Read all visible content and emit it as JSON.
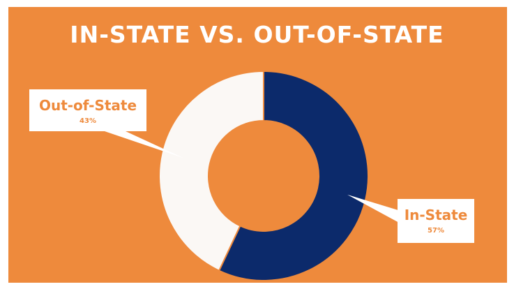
{
  "chart_data": {
    "type": "pie",
    "title": "IN-STATE VS. OUT-OF-STATE",
    "categories": [
      "In-State",
      "Out-of-State"
    ],
    "values": [
      57,
      43
    ],
    "value_labels": [
      "57%",
      "43%"
    ],
    "colors": [
      "#0c2a6b",
      "#fbf8f5"
    ],
    "donut": true,
    "legend": "callouts"
  },
  "colors": {
    "background": "#ee8a3c",
    "label_text": "#ee8a3c",
    "title_text": "#ffffff"
  }
}
